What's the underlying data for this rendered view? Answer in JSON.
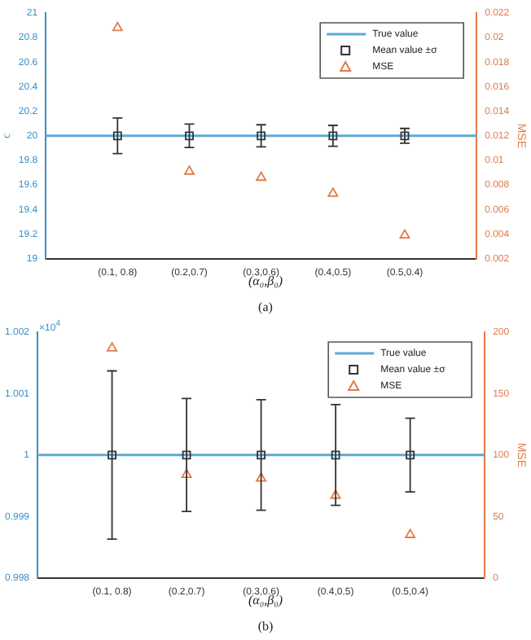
{
  "chart_data": [
    {
      "type": "scatter",
      "categories": [
        "(0.1, 0.8)",
        "(0.2,0.7)",
        "(0.3,0.6)",
        "(0.4,0.5)",
        "(0.5,0.4)"
      ],
      "xlabel": "(α₀,β₀)",
      "ylabel": "c",
      "y2label": "MSE",
      "annotations": [
        "(a)"
      ],
      "ylim": [
        19,
        21
      ],
      "yticks": [
        19,
        19.2,
        19.4,
        19.6,
        19.8,
        20,
        20.2,
        20.4,
        20.6,
        20.8,
        21
      ],
      "y2lim": [
        0.002,
        0.022
      ],
      "y2ticks": [
        0.002,
        0.004,
        0.006,
        0.008,
        0.01,
        0.012,
        0.014,
        0.016,
        0.018,
        0.02,
        0.022
      ],
      "legend": "top right",
      "grid": false,
      "ref_lines": [
        {
          "axis": "y",
          "value": 20,
          "label": "True value",
          "color": "#5aaad8"
        }
      ],
      "series": [
        {
          "name": "Mean value ±σ",
          "color": "#333333",
          "marker": "square",
          "values": [
            20,
            20,
            20,
            20,
            20
          ],
          "errors": [
            0.145,
            0.095,
            0.09,
            0.085,
            0.06
          ]
        },
        {
          "name": "MSE",
          "color": "#e07b4a",
          "marker": "triangle",
          "axis": "y2",
          "values": [
            0.0208,
            0.0091,
            0.0086,
            0.0073,
            0.0039
          ]
        }
      ]
    },
    {
      "type": "scatter",
      "categories": [
        "(0.1, 0.8)",
        "(0.2,0.7)",
        "(0.3,0.6)",
        "(0.4,0.5)",
        "(0.5,0.4)"
      ],
      "xlabel": "(α₀,β₀)",
      "y2label": "MSE",
      "annotations": [
        "×10$^{4}$",
        "(b)"
      ],
      "ylim": [
        0.998,
        1.002
      ],
      "yticks": [
        0.998,
        0.999,
        1,
        1.001,
        1.002
      ],
      "y2lim": [
        0,
        200
      ],
      "y2ticks": [
        0,
        50,
        100,
        150,
        200
      ],
      "legend": "top right",
      "grid": false,
      "ref_lines": [
        {
          "axis": "y",
          "value": 1,
          "label": "True value",
          "color": "#5aaad8"
        }
      ],
      "series": [
        {
          "name": "Mean value ±σ",
          "color": "#333333",
          "marker": "square",
          "values": [
            1,
            1,
            1,
            1,
            1
          ],
          "errors": [
            0.00137,
            0.00092,
            0.0009,
            0.00082,
            0.0006
          ]
        },
        {
          "name": "MSE",
          "color": "#e07b4a",
          "marker": "triangle",
          "axis": "y2",
          "values": [
            187,
            84,
            81,
            67,
            35
          ]
        }
      ]
    }
  ]
}
